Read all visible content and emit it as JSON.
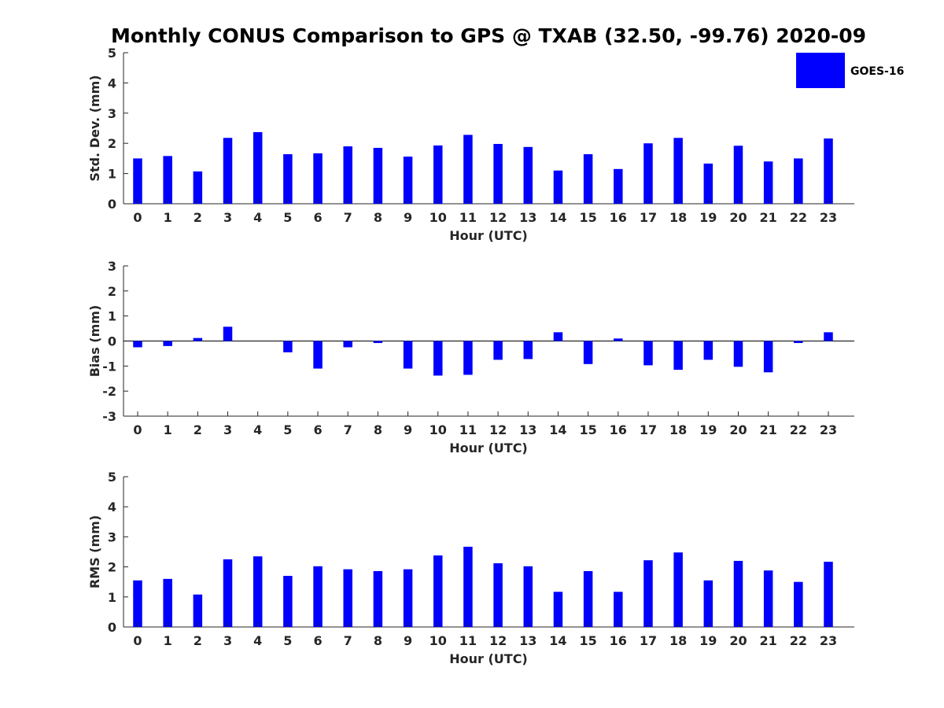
{
  "chart_data": {
    "title": "Monthly CONUS Comparison to GPS @ TXAB (32.50, -99.76) 2020-09",
    "legend": {
      "label": "GOES-16",
      "color": "#0000ff",
      "position": "top-right"
    },
    "bar_color": "#0000ff",
    "panels": [
      {
        "type": "bar",
        "name": "std-dev",
        "ylabel": "Std. Dev. (mm)",
        "xlabel": "Hour (UTC)",
        "ylim": [
          0,
          5
        ],
        "yticks": [
          "0",
          "1",
          "2",
          "3",
          "4",
          "5"
        ],
        "categories": [
          "0",
          "1",
          "2",
          "3",
          "4",
          "5",
          "6",
          "7",
          "8",
          "9",
          "10",
          "11",
          "12",
          "13",
          "14",
          "15",
          "16",
          "17",
          "18",
          "19",
          "20",
          "21",
          "22",
          "23"
        ],
        "values": [
          1.5,
          1.58,
          1.07,
          2.18,
          2.37,
          1.64,
          1.67,
          1.9,
          1.85,
          1.56,
          1.93,
          2.28,
          1.98,
          1.88,
          1.1,
          1.64,
          1.15,
          2.0,
          2.18,
          1.33,
          1.92,
          1.4,
          1.5,
          2.16
        ]
      },
      {
        "type": "bar",
        "name": "bias",
        "ylabel": "Bias (mm)",
        "xlabel": "Hour (UTC)",
        "ylim": [
          -3,
          3
        ],
        "yticks": [
          "-3",
          "-2",
          "-1",
          "0",
          "1",
          "2",
          "3"
        ],
        "categories": [
          "0",
          "1",
          "2",
          "3",
          "4",
          "5",
          "6",
          "7",
          "8",
          "9",
          "10",
          "11",
          "12",
          "13",
          "14",
          "15",
          "16",
          "17",
          "18",
          "19",
          "20",
          "21",
          "22",
          "23"
        ],
        "values": [
          -0.25,
          -0.2,
          0.12,
          0.57,
          0.0,
          -0.45,
          -1.1,
          -0.25,
          -0.08,
          -1.1,
          -1.38,
          -1.35,
          -0.75,
          -0.72,
          0.35,
          -0.92,
          0.1,
          -0.97,
          -1.15,
          -0.75,
          -1.03,
          -1.25,
          -0.08,
          0.35
        ]
      },
      {
        "type": "bar",
        "name": "rms",
        "ylabel": "RMS (mm)",
        "xlabel": "Hour (UTC)",
        "ylim": [
          0,
          5
        ],
        "yticks": [
          "0",
          "1",
          "2",
          "3",
          "4",
          "5"
        ],
        "categories": [
          "0",
          "1",
          "2",
          "3",
          "4",
          "5",
          "6",
          "7",
          "8",
          "9",
          "10",
          "11",
          "12",
          "13",
          "14",
          "15",
          "16",
          "17",
          "18",
          "19",
          "20",
          "21",
          "22",
          "23"
        ],
        "values": [
          1.55,
          1.6,
          1.08,
          2.25,
          2.35,
          1.7,
          2.02,
          1.92,
          1.86,
          1.92,
          2.38,
          2.67,
          2.12,
          2.02,
          1.17,
          1.86,
          1.17,
          2.22,
          2.48,
          1.55,
          2.2,
          1.88,
          1.5,
          2.17
        ]
      }
    ]
  }
}
